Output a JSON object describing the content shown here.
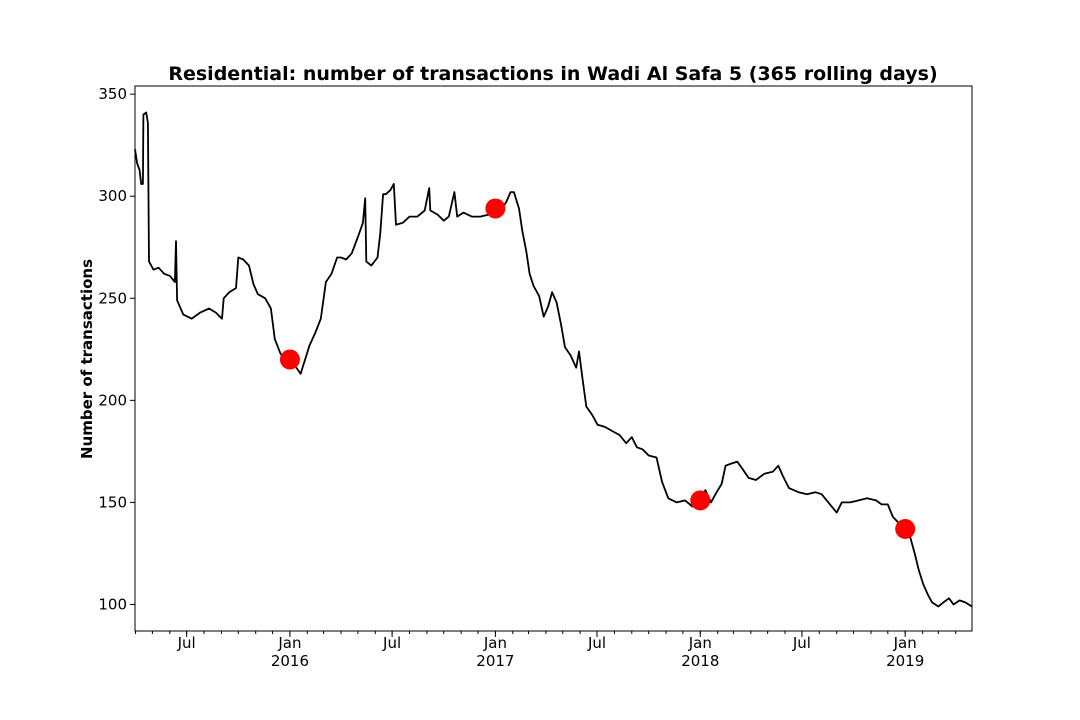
{
  "chart_data": {
    "type": "line",
    "title": "Residential: number of transactions in Wadi Al Safa 5 (365 rolling days)",
    "xlabel": "",
    "ylabel": "Number of transactions",
    "xlim": [
      "2015-03-31",
      "2019-04-30"
    ],
    "ylim": [
      87,
      354
    ],
    "y_ticks": [
      100,
      150,
      200,
      250,
      300,
      350
    ],
    "x_ticks": [
      {
        "date": "2015-07-01",
        "label": "Jul",
        "sublabel": ""
      },
      {
        "date": "2016-01-01",
        "label": "Jan",
        "sublabel": "2016"
      },
      {
        "date": "2016-07-01",
        "label": "Jul",
        "sublabel": ""
      },
      {
        "date": "2017-01-01",
        "label": "Jan",
        "sublabel": "2017"
      },
      {
        "date": "2017-07-01",
        "label": "Jul",
        "sublabel": ""
      },
      {
        "date": "2018-01-01",
        "label": "Jan",
        "sublabel": "2018"
      },
      {
        "date": "2018-07-01",
        "label": "Jul",
        "sublabel": ""
      },
      {
        "date": "2019-01-01",
        "label": "Jan",
        "sublabel": "2019"
      }
    ],
    "series": [
      {
        "color": "#000000",
        "points": [
          [
            "2015-03-31",
            323
          ],
          [
            "2015-04-04",
            316
          ],
          [
            "2015-04-08",
            313
          ],
          [
            "2015-04-11",
            306
          ],
          [
            "2015-04-14",
            306
          ],
          [
            "2015-04-15",
            340
          ],
          [
            "2015-04-20",
            341
          ],
          [
            "2015-04-23",
            336
          ],
          [
            "2015-04-25",
            268
          ],
          [
            "2015-05-03",
            264
          ],
          [
            "2015-05-12",
            265
          ],
          [
            "2015-05-22",
            262
          ],
          [
            "2015-06-01",
            261
          ],
          [
            "2015-06-10",
            258
          ],
          [
            "2015-06-12",
            278
          ],
          [
            "2015-06-14",
            249
          ],
          [
            "2015-06-25",
            242
          ],
          [
            "2015-07-10",
            240
          ],
          [
            "2015-07-25",
            243
          ],
          [
            "2015-08-10",
            245
          ],
          [
            "2015-08-22",
            243
          ],
          [
            "2015-09-02",
            240
          ],
          [
            "2015-09-05",
            250
          ],
          [
            "2015-09-15",
            253
          ],
          [
            "2015-09-27",
            255
          ],
          [
            "2015-10-01",
            270
          ],
          [
            "2015-10-10",
            269
          ],
          [
            "2015-10-20",
            266
          ],
          [
            "2015-10-28",
            257
          ],
          [
            "2015-11-05",
            252
          ],
          [
            "2015-11-18",
            250
          ],
          [
            "2015-11-28",
            245
          ],
          [
            "2015-12-05",
            230
          ],
          [
            "2015-12-15",
            223
          ],
          [
            "2015-12-25",
            219
          ],
          [
            "2016-01-01",
            220
          ],
          [
            "2016-01-10",
            217
          ],
          [
            "2016-01-20",
            213
          ],
          [
            "2016-01-28",
            220
          ],
          [
            "2016-02-05",
            227
          ],
          [
            "2016-02-15",
            233
          ],
          [
            "2016-02-25",
            240
          ],
          [
            "2016-03-05",
            258
          ],
          [
            "2016-03-15",
            262
          ],
          [
            "2016-03-25",
            270
          ],
          [
            "2016-04-01",
            270
          ],
          [
            "2016-04-10",
            269
          ],
          [
            "2016-04-20",
            272
          ],
          [
            "2016-05-01",
            280
          ],
          [
            "2016-05-10",
            287
          ],
          [
            "2016-05-14",
            299
          ],
          [
            "2016-05-16",
            268
          ],
          [
            "2016-05-25",
            266
          ],
          [
            "2016-06-05",
            270
          ],
          [
            "2016-06-10",
            282
          ],
          [
            "2016-06-15",
            301
          ],
          [
            "2016-06-20",
            301
          ],
          [
            "2016-06-28",
            303
          ],
          [
            "2016-07-04",
            306
          ],
          [
            "2016-07-08",
            286
          ],
          [
            "2016-07-20",
            287
          ],
          [
            "2016-08-01",
            290
          ],
          [
            "2016-08-15",
            290
          ],
          [
            "2016-08-28",
            293
          ],
          [
            "2016-09-05",
            304
          ],
          [
            "2016-09-07",
            293
          ],
          [
            "2016-09-20",
            291
          ],
          [
            "2016-10-01",
            288
          ],
          [
            "2016-10-10",
            290
          ],
          [
            "2016-10-20",
            302
          ],
          [
            "2016-10-25",
            290
          ],
          [
            "2016-11-05",
            292
          ],
          [
            "2016-11-20",
            290
          ],
          [
            "2016-12-05",
            290
          ],
          [
            "2016-12-20",
            291
          ],
          [
            "2017-01-01",
            294
          ],
          [
            "2017-01-10",
            293
          ],
          [
            "2017-01-20",
            297
          ],
          [
            "2017-01-28",
            302
          ],
          [
            "2017-02-03",
            302
          ],
          [
            "2017-02-12",
            294
          ],
          [
            "2017-02-18",
            283
          ],
          [
            "2017-02-25",
            273
          ],
          [
            "2017-03-03",
            262
          ],
          [
            "2017-03-10",
            256
          ],
          [
            "2017-03-20",
            251
          ],
          [
            "2017-03-28",
            241
          ],
          [
            "2017-04-05",
            246
          ],
          [
            "2017-04-12",
            253
          ],
          [
            "2017-04-20",
            248
          ],
          [
            "2017-04-28",
            237
          ],
          [
            "2017-05-05",
            226
          ],
          [
            "2017-05-15",
            222
          ],
          [
            "2017-05-25",
            216
          ],
          [
            "2017-05-30",
            224
          ],
          [
            "2017-06-05",
            211
          ],
          [
            "2017-06-12",
            197
          ],
          [
            "2017-06-22",
            193
          ],
          [
            "2017-07-02",
            188
          ],
          [
            "2017-07-15",
            187
          ],
          [
            "2017-07-28",
            185
          ],
          [
            "2017-08-10",
            183
          ],
          [
            "2017-08-22",
            179
          ],
          [
            "2017-09-01",
            182
          ],
          [
            "2017-09-10",
            177
          ],
          [
            "2017-09-20",
            176
          ],
          [
            "2017-10-01",
            173
          ],
          [
            "2017-10-15",
            172
          ],
          [
            "2017-10-25",
            160
          ],
          [
            "2017-11-05",
            152
          ],
          [
            "2017-11-20",
            150
          ],
          [
            "2017-12-05",
            151
          ],
          [
            "2017-12-18",
            148
          ],
          [
            "2018-01-01",
            151
          ],
          [
            "2018-01-10",
            156
          ],
          [
            "2018-01-20",
            150
          ],
          [
            "2018-01-30",
            155
          ],
          [
            "2018-02-08",
            159
          ],
          [
            "2018-02-15",
            168
          ],
          [
            "2018-02-25",
            169
          ],
          [
            "2018-03-08",
            170
          ],
          [
            "2018-03-18",
            166
          ],
          [
            "2018-03-28",
            162
          ],
          [
            "2018-04-10",
            161
          ],
          [
            "2018-04-25",
            164
          ],
          [
            "2018-05-10",
            165
          ],
          [
            "2018-05-20",
            168
          ],
          [
            "2018-05-28",
            163
          ],
          [
            "2018-06-08",
            157
          ],
          [
            "2018-06-25",
            155
          ],
          [
            "2018-07-10",
            154
          ],
          [
            "2018-07-25",
            155
          ],
          [
            "2018-08-05",
            154
          ],
          [
            "2018-08-20",
            149
          ],
          [
            "2018-09-01",
            145
          ],
          [
            "2018-09-10",
            150
          ],
          [
            "2018-09-25",
            150
          ],
          [
            "2018-10-10",
            151
          ],
          [
            "2018-10-25",
            152
          ],
          [
            "2018-11-10",
            151
          ],
          [
            "2018-11-20",
            149
          ],
          [
            "2018-12-01",
            149
          ],
          [
            "2018-12-10",
            143
          ],
          [
            "2018-12-20",
            140
          ],
          [
            "2019-01-01",
            137
          ],
          [
            "2019-01-10",
            133
          ],
          [
            "2019-01-18",
            125
          ],
          [
            "2019-01-25",
            117
          ],
          [
            "2019-02-02",
            110
          ],
          [
            "2019-02-10",
            105
          ],
          [
            "2019-02-18",
            101
          ],
          [
            "2019-03-01",
            99
          ],
          [
            "2019-03-10",
            101
          ],
          [
            "2019-03-20",
            103
          ],
          [
            "2019-03-28",
            100
          ],
          [
            "2019-04-08",
            102
          ],
          [
            "2019-04-18",
            101
          ],
          [
            "2019-04-30",
            99
          ]
        ]
      }
    ],
    "highlights": {
      "color": "#ff0000",
      "points": [
        [
          "2016-01-01",
          220
        ],
        [
          "2017-01-01",
          294
        ],
        [
          "2018-01-01",
          151
        ],
        [
          "2019-01-01",
          137
        ]
      ]
    },
    "grid": false,
    "legend": "none"
  }
}
